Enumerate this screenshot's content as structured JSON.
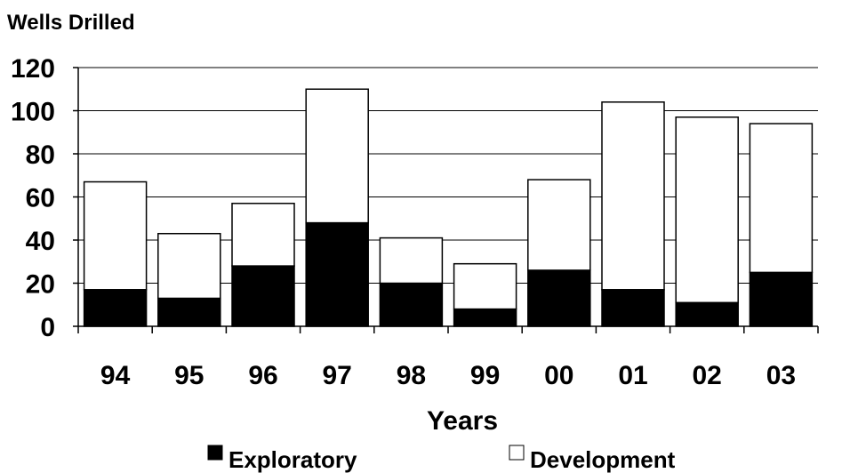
{
  "chart_data": {
    "type": "bar",
    "stacked": true,
    "title": "",
    "ylabel": "Wells Drilled",
    "xlabel": "Years",
    "categories": [
      "94",
      "95",
      "96",
      "97",
      "98",
      "99",
      "00",
      "01",
      "02",
      "03"
    ],
    "series": [
      {
        "name": "Exploratory",
        "color": "#000000",
        "values": [
          17,
          13,
          28,
          48,
          20,
          8,
          26,
          17,
          11,
          25
        ]
      },
      {
        "name": "Development",
        "color": "#ffffff",
        "values": [
          50,
          30,
          29,
          62,
          21,
          21,
          42,
          87,
          86,
          69
        ]
      }
    ],
    "ylim": [
      0,
      120
    ],
    "yticks": [
      "0",
      "20",
      "40",
      "60",
      "80",
      "100",
      "120"
    ],
    "grid": true,
    "legend_position": "bottom"
  }
}
